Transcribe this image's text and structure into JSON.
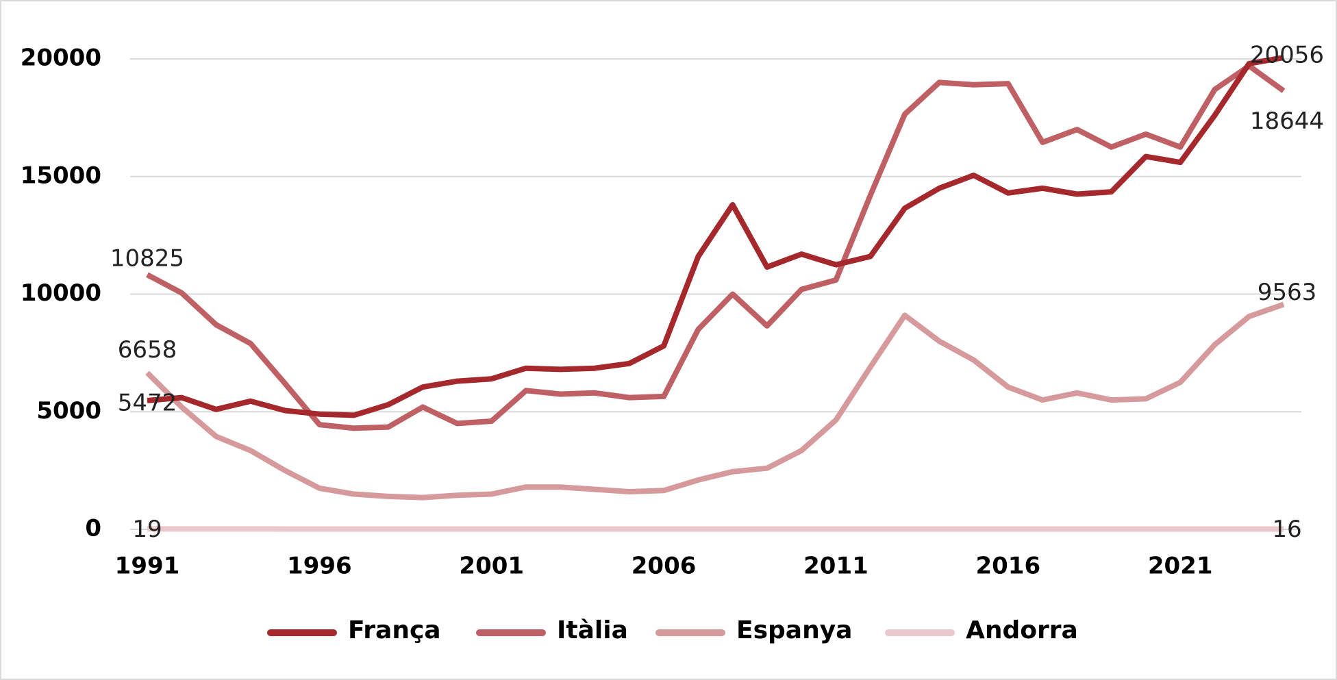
{
  "chart_data": {
    "type": "line",
    "x": [
      1991,
      1992,
      1993,
      1994,
      1995,
      1996,
      1997,
      1998,
      1999,
      2000,
      2001,
      2002,
      2003,
      2004,
      2005,
      2006,
      2007,
      2008,
      2009,
      2010,
      2011,
      2012,
      2013,
      2014,
      2015,
      2016,
      2017,
      2018,
      2019,
      2020,
      2021,
      2022,
      2023,
      2024
    ],
    "xlim": [
      1991,
      2024
    ],
    "xticks": [
      1991,
      1996,
      2001,
      2006,
      2011,
      2016,
      2021
    ],
    "ylim": [
      0,
      20000
    ],
    "yticks": [
      0,
      5000,
      10000,
      15000,
      20000
    ],
    "grid": true,
    "legend": "bottom",
    "series": [
      {
        "name": "França",
        "color": "#a4282c",
        "values": [
          5472,
          5600,
          5100,
          5450,
          5050,
          4900,
          4850,
          5300,
          6050,
          6300,
          6400,
          6850,
          6800,
          6850,
          7050,
          7800,
          11600,
          13800,
          11150,
          11700,
          11250,
          11600,
          13650,
          14500,
          15050,
          14300,
          14500,
          14250,
          14350,
          15850,
          15600,
          17600,
          19800,
          20056
        ]
      },
      {
        "name": "Itàlia",
        "color": "#bf6065",
        "values": [
          10825,
          10050,
          8700,
          7900,
          6200,
          4450,
          4300,
          4350,
          5200,
          4500,
          4600,
          5900,
          5750,
          5800,
          5600,
          5650,
          8500,
          10000,
          8650,
          10200,
          10600,
          14200,
          17650,
          19000,
          18900,
          18950,
          16450,
          17000,
          16250,
          16800,
          16250,
          18700,
          19700,
          18644
        ]
      },
      {
        "name": "Espanya",
        "color": "#d69a9d",
        "values": [
          6658,
          5200,
          3950,
          3350,
          2500,
          1750,
          1500,
          1400,
          1350,
          1450,
          1500,
          1800,
          1800,
          1700,
          1600,
          1650,
          2100,
          2450,
          2600,
          3350,
          4650,
          6900,
          9100,
          8000,
          7200,
          6050,
          5500,
          5800,
          5500,
          5550,
          6250,
          7850,
          9050,
          9563
        ]
      },
      {
        "name": "Andorra",
        "color": "#ebc8c9",
        "values": [
          19,
          18,
          17,
          17,
          16,
          16,
          15,
          15,
          15,
          15,
          15,
          15,
          15,
          15,
          15,
          15,
          15,
          15,
          15,
          15,
          15,
          15,
          15,
          15,
          15,
          15,
          15,
          15,
          15,
          15,
          15,
          15,
          16,
          16
        ]
      }
    ]
  }
}
